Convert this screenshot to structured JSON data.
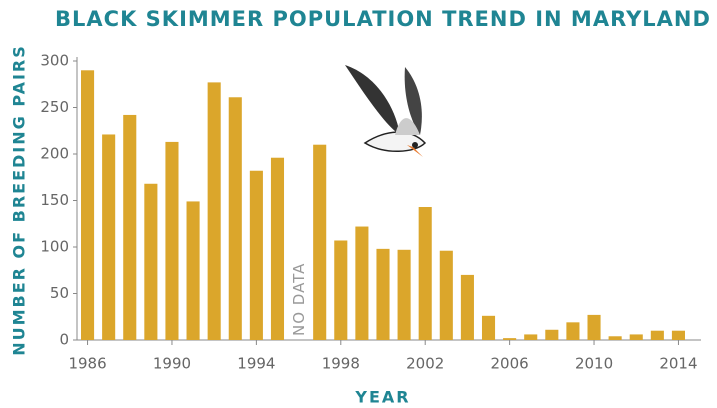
{
  "chart_data": {
    "type": "bar",
    "title": "BLACK SKIMMER POPULATION TREND IN MARYLAND",
    "x_label": "YEAR",
    "y_label": "NUMBER OF BREEDING PAIRS",
    "annotation": "NO DATA",
    "categories": [
      "1986",
      null,
      null,
      null,
      "1990",
      null,
      null,
      null,
      "1994",
      null,
      null,
      null,
      "1998",
      null,
      null,
      null,
      "2002",
      null,
      null,
      null,
      "2006",
      null,
      null,
      null,
      "2010",
      null,
      null,
      null,
      "2014"
    ],
    "values": [
      290,
      221,
      242,
      168,
      213,
      149,
      277,
      261,
      182,
      196,
      null,
      210,
      107,
      122,
      98,
      97,
      143,
      96,
      70,
      26,
      2,
      6,
      11,
      19,
      27,
      4,
      6,
      10,
      10
    ],
    "color": "#dba62b",
    "ylim": [
      0,
      300
    ],
    "yticks": [
      0,
      50,
      100,
      150,
      200,
      250,
      300
    ]
  }
}
